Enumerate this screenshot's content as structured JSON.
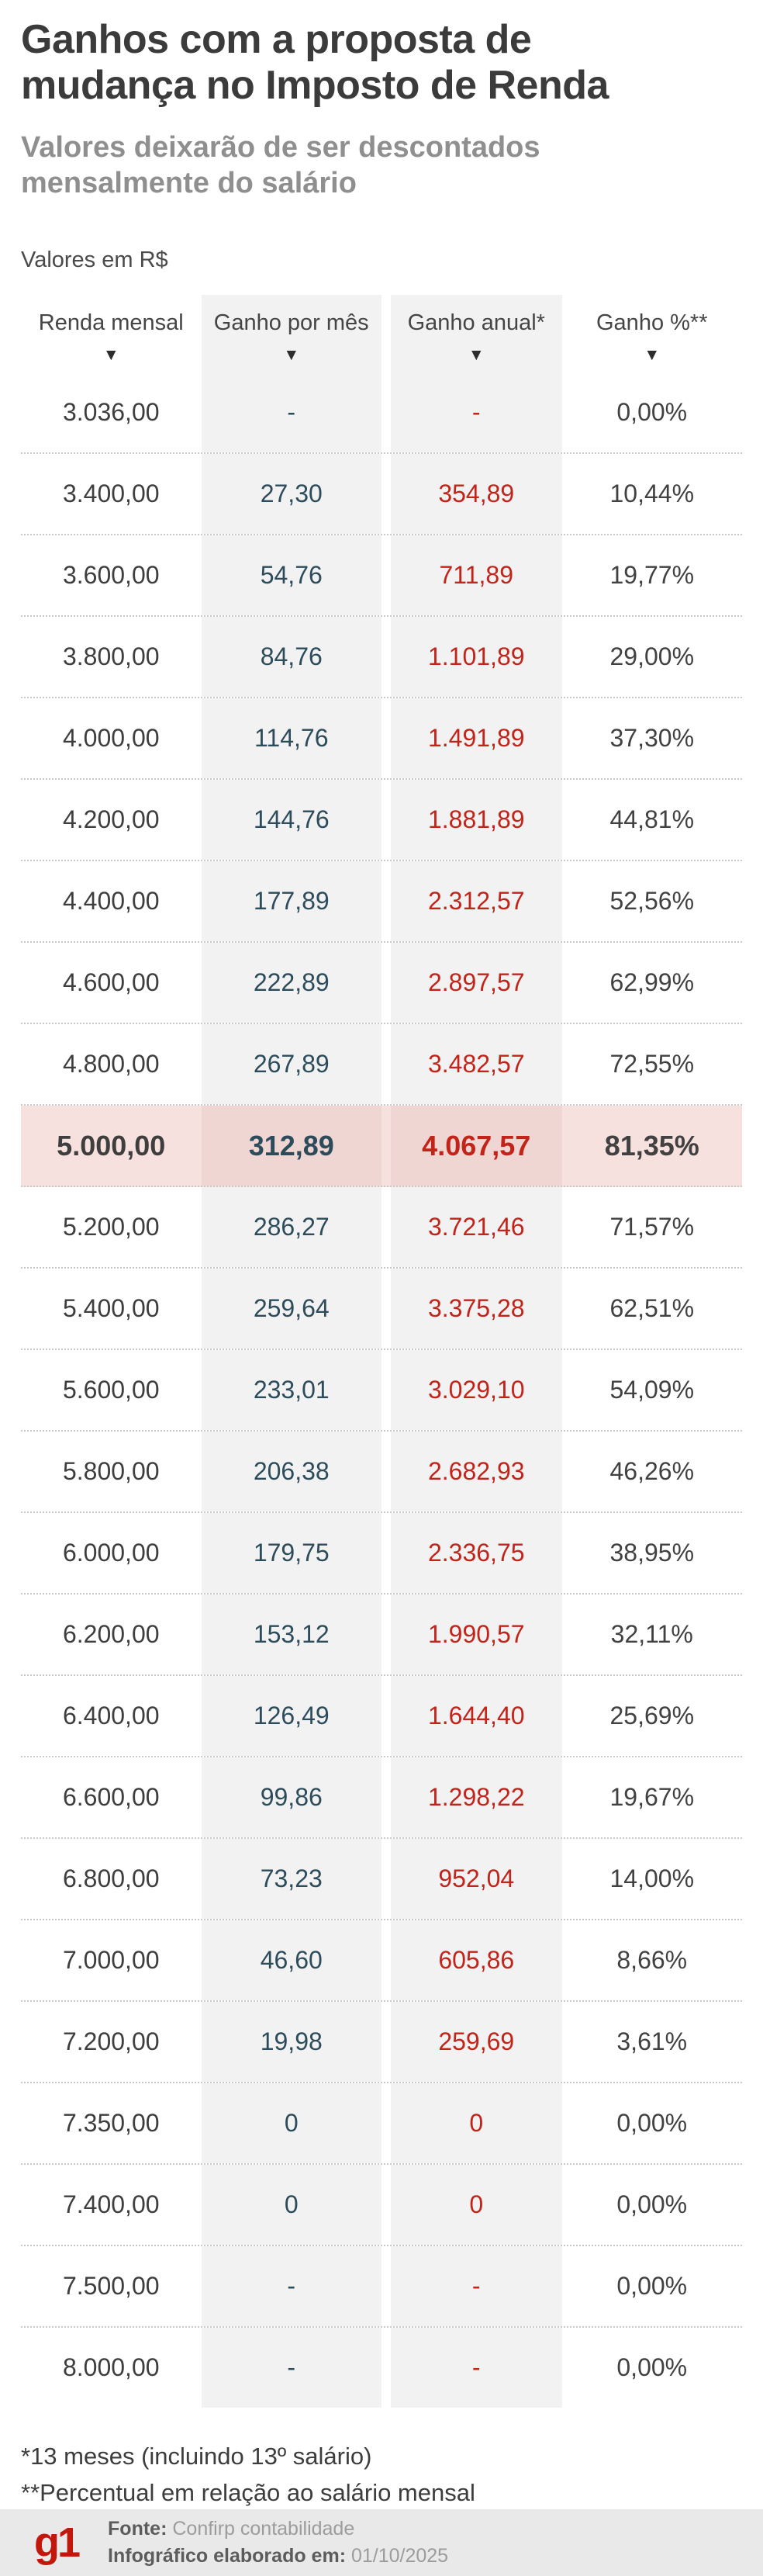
{
  "header": {
    "title_lines": [
      "Ganhos com a proposta de",
      "mudança no Imposto de Renda"
    ],
    "subtitle_lines": [
      "Valores deixarão de ser descontados",
      "mensalmente do salário"
    ],
    "units_label": "Valores em R$"
  },
  "table": {
    "sort_icon": "▼"
  },
  "chart_data": {
    "type": "table",
    "title": "Ganhos com a proposta de mudança no Imposto de Renda",
    "subtitle": "Valores deixarão de ser descontados mensalmente do salário",
    "units": "Valores em R$",
    "columns": [
      "Renda mensal",
      "Ganho por mês",
      "Ganho anual*",
      "Ganho %**"
    ],
    "highlighted_row": "5.000,00",
    "rows": [
      {
        "renda_mensal": "3.036,00",
        "ganho_por_mes": "-",
        "ganho_anual": "-",
        "ganho_pct": "0,00%",
        "highlight": false
      },
      {
        "renda_mensal": "3.400,00",
        "ganho_por_mes": "27,30",
        "ganho_anual": "354,89",
        "ganho_pct": "10,44%",
        "highlight": false
      },
      {
        "renda_mensal": "3.600,00",
        "ganho_por_mes": "54,76",
        "ganho_anual": "711,89",
        "ganho_pct": "19,77%",
        "highlight": false
      },
      {
        "renda_mensal": "3.800,00",
        "ganho_por_mes": "84,76",
        "ganho_anual": "1.101,89",
        "ganho_pct": "29,00%",
        "highlight": false
      },
      {
        "renda_mensal": "4.000,00",
        "ganho_por_mes": "114,76",
        "ganho_anual": "1.491,89",
        "ganho_pct": "37,30%",
        "highlight": false
      },
      {
        "renda_mensal": "4.200,00",
        "ganho_por_mes": "144,76",
        "ganho_anual": "1.881,89",
        "ganho_pct": "44,81%",
        "highlight": false
      },
      {
        "renda_mensal": "4.400,00",
        "ganho_por_mes": "177,89",
        "ganho_anual": "2.312,57",
        "ganho_pct": "52,56%",
        "highlight": false
      },
      {
        "renda_mensal": "4.600,00",
        "ganho_por_mes": "222,89",
        "ganho_anual": "2.897,57",
        "ganho_pct": "62,99%",
        "highlight": false
      },
      {
        "renda_mensal": "4.800,00",
        "ganho_por_mes": "267,89",
        "ganho_anual": "3.482,57",
        "ganho_pct": "72,55%",
        "highlight": false
      },
      {
        "renda_mensal": "5.000,00",
        "ganho_por_mes": "312,89",
        "ganho_anual": "4.067,57",
        "ganho_pct": "81,35%",
        "highlight": true
      },
      {
        "renda_mensal": "5.200,00",
        "ganho_por_mes": "286,27",
        "ganho_anual": "3.721,46",
        "ganho_pct": "71,57%",
        "highlight": false
      },
      {
        "renda_mensal": "5.400,00",
        "ganho_por_mes": "259,64",
        "ganho_anual": "3.375,28",
        "ganho_pct": "62,51%",
        "highlight": false
      },
      {
        "renda_mensal": "5.600,00",
        "ganho_por_mes": "233,01",
        "ganho_anual": "3.029,10",
        "ganho_pct": "54,09%",
        "highlight": false
      },
      {
        "renda_mensal": "5.800,00",
        "ganho_por_mes": "206,38",
        "ganho_anual": "2.682,93",
        "ganho_pct": "46,26%",
        "highlight": false
      },
      {
        "renda_mensal": "6.000,00",
        "ganho_por_mes": "179,75",
        "ganho_anual": "2.336,75",
        "ganho_pct": "38,95%",
        "highlight": false
      },
      {
        "renda_mensal": "6.200,00",
        "ganho_por_mes": "153,12",
        "ganho_anual": "1.990,57",
        "ganho_pct": "32,11%",
        "highlight": false
      },
      {
        "renda_mensal": "6.400,00",
        "ganho_por_mes": "126,49",
        "ganho_anual": "1.644,40",
        "ganho_pct": "25,69%",
        "highlight": false
      },
      {
        "renda_mensal": "6.600,00",
        "ganho_por_mes": "99,86",
        "ganho_anual": "1.298,22",
        "ganho_pct": "19,67%",
        "highlight": false
      },
      {
        "renda_mensal": "6.800,00",
        "ganho_por_mes": "73,23",
        "ganho_anual": "952,04",
        "ganho_pct": "14,00%",
        "highlight": false
      },
      {
        "renda_mensal": "7.000,00",
        "ganho_por_mes": "46,60",
        "ganho_anual": "605,86",
        "ganho_pct": "8,66%",
        "highlight": false
      },
      {
        "renda_mensal": "7.200,00",
        "ganho_por_mes": "19,98",
        "ganho_anual": "259,69",
        "ganho_pct": "3,61%",
        "highlight": false
      },
      {
        "renda_mensal": "7.350,00",
        "ganho_por_mes": "0",
        "ganho_anual": "0",
        "ganho_pct": "0,00%",
        "highlight": false
      },
      {
        "renda_mensal": "7.400,00",
        "ganho_por_mes": "0",
        "ganho_anual": "0",
        "ganho_pct": "0,00%",
        "highlight": false
      },
      {
        "renda_mensal": "7.500,00",
        "ganho_por_mes": "-",
        "ganho_anual": "-",
        "ganho_pct": "0,00%",
        "highlight": false
      },
      {
        "renda_mensal": "8.000,00",
        "ganho_por_mes": "-",
        "ganho_anual": "-",
        "ganho_pct": "0,00%",
        "highlight": false
      }
    ]
  },
  "footnotes": {
    "note1": "*13 meses (incluindo 13º salário)",
    "note2": "**Percentual em relação ao salário mensal"
  },
  "footer": {
    "logo_text": "g1",
    "source_label": "Fonte:",
    "source_value": "Confirp contabilidade",
    "date_label": "Infográfico elaborado em:",
    "date_value": "01/10/2025"
  },
  "colors": {
    "monthly_gain_teal": "#2d4c5b",
    "annual_gain_red": "#c2241a",
    "highlight_row_bg": "#f7e1de",
    "shaded_column_bg": "#f2f2f2",
    "logo_red": "#c4170c",
    "footer_bg": "#e9e9e9"
  }
}
